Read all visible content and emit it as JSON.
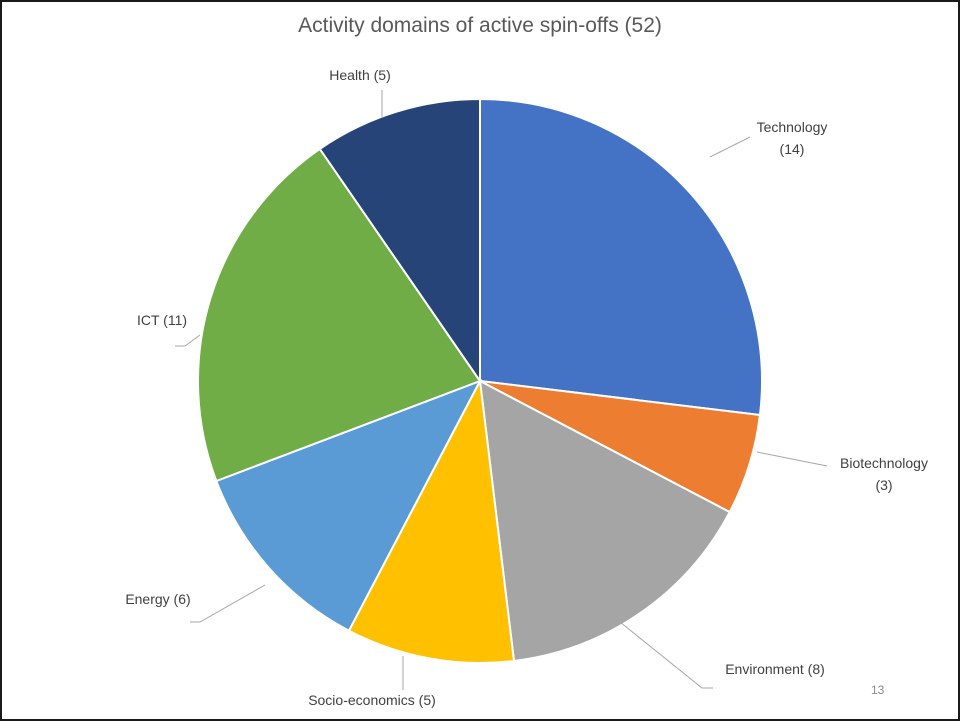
{
  "slide": {
    "page_number": "13"
  },
  "chart_data": {
    "type": "pie",
    "title": "Activity domains of active spin-offs (52)",
    "slices": [
      {
        "name": "Technology",
        "value": 14,
        "label": [
          "Technology",
          "(14)"
        ],
        "color": "#4472C4"
      },
      {
        "name": "Biotechnology",
        "value": 3,
        "label": [
          "Biotechnology",
          "(3)"
        ],
        "color": "#ED7D31"
      },
      {
        "name": "Environment",
        "value": 8,
        "label": [
          "Environment (8)"
        ],
        "color": "#A5A5A5"
      },
      {
        "name": "Socio-economics",
        "value": 5,
        "label": [
          "Socio-economics (5)"
        ],
        "color": "#FFC000"
      },
      {
        "name": "Energy",
        "value": 6,
        "label": [
          "Energy (6)"
        ],
        "color": "#5B9BD5"
      },
      {
        "name": "ICT",
        "value": 11,
        "label": [
          "ICT (11)"
        ],
        "color": "#70AD47"
      },
      {
        "name": "Health",
        "value": 5,
        "label": [
          "Health (5)"
        ],
        "color": "#264478"
      }
    ],
    "legend": "none",
    "start_angle": "12 o'clock",
    "direction": "clockwise"
  }
}
